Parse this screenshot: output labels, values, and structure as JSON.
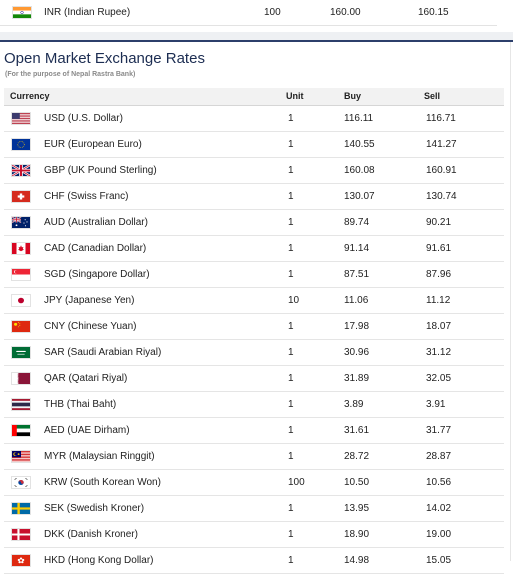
{
  "prev_row": {
    "flag": "india-flag",
    "currency": "INR (Indian Rupee)",
    "unit": "100",
    "buy": "160.00",
    "sell": "160.15"
  },
  "section": {
    "title": "Open Market Exchange Rates",
    "subtitle": "(For the purpose of Nepal Rastra Bank)"
  },
  "table": {
    "headers": {
      "currency": "Currency",
      "unit": "Unit",
      "buy": "Buy",
      "sell": "Sell"
    },
    "rows": [
      {
        "flag": "usa-flag",
        "currency": "USD (U.S. Dollar)",
        "unit": "1",
        "buy": "116.11",
        "sell": "116.71"
      },
      {
        "flag": "eu-flag",
        "currency": "EUR (European Euro)",
        "unit": "1",
        "buy": "140.55",
        "sell": "141.27"
      },
      {
        "flag": "uk-flag",
        "currency": "GBP (UK Pound Sterling)",
        "unit": "1",
        "buy": "160.08",
        "sell": "160.91"
      },
      {
        "flag": "switzerland-flag",
        "currency": "CHF (Swiss Franc)",
        "unit": "1",
        "buy": "130.07",
        "sell": "130.74"
      },
      {
        "flag": "australia-flag",
        "currency": "AUD (Australian Dollar)",
        "unit": "1",
        "buy": "89.74",
        "sell": "90.21"
      },
      {
        "flag": "canada-flag",
        "currency": "CAD (Canadian Dollar)",
        "unit": "1",
        "buy": "91.14",
        "sell": "91.61"
      },
      {
        "flag": "singapore-flag",
        "currency": "SGD (Singapore Dollar)",
        "unit": "1",
        "buy": "87.51",
        "sell": "87.96"
      },
      {
        "flag": "japan-flag",
        "currency": "JPY (Japanese Yen)",
        "unit": "10",
        "buy": "11.06",
        "sell": "11.12"
      },
      {
        "flag": "china-flag",
        "currency": "CNY (Chinese Yuan)",
        "unit": "1",
        "buy": "17.98",
        "sell": "18.07"
      },
      {
        "flag": "saudi-arabia-flag",
        "currency": "SAR (Saudi Arabian Riyal)",
        "unit": "1",
        "buy": "30.96",
        "sell": "31.12"
      },
      {
        "flag": "qatar-flag",
        "currency": "QAR (Qatari Riyal)",
        "unit": "1",
        "buy": "31.89",
        "sell": "32.05"
      },
      {
        "flag": "thailand-flag",
        "currency": "THB (Thai Baht)",
        "unit": "1",
        "buy": "3.89",
        "sell": "3.91"
      },
      {
        "flag": "uae-flag",
        "currency": "AED (UAE Dirham)",
        "unit": "1",
        "buy": "31.61",
        "sell": "31.77"
      },
      {
        "flag": "malaysia-flag",
        "currency": "MYR (Malaysian Ringgit)",
        "unit": "1",
        "buy": "28.72",
        "sell": "28.87"
      },
      {
        "flag": "south-korea-flag",
        "currency": "KRW (South Korean Won)",
        "unit": "100",
        "buy": "10.50",
        "sell": "10.56"
      },
      {
        "flag": "sweden-flag",
        "currency": "SEK (Swedish Kroner)",
        "unit": "1",
        "buy": "13.95",
        "sell": "14.02"
      },
      {
        "flag": "denmark-flag",
        "currency": "DKK (Danish Kroner)",
        "unit": "1",
        "buy": "18.90",
        "sell": "19.00"
      },
      {
        "flag": "hong-kong-flag",
        "currency": "HKD (Hong Kong Dollar)",
        "unit": "1",
        "buy": "14.98",
        "sell": "15.05"
      }
    ]
  },
  "colors": {
    "title": "#1c2d52",
    "divider": "#2c3f6b",
    "header_bg": "#f2f2f2"
  }
}
